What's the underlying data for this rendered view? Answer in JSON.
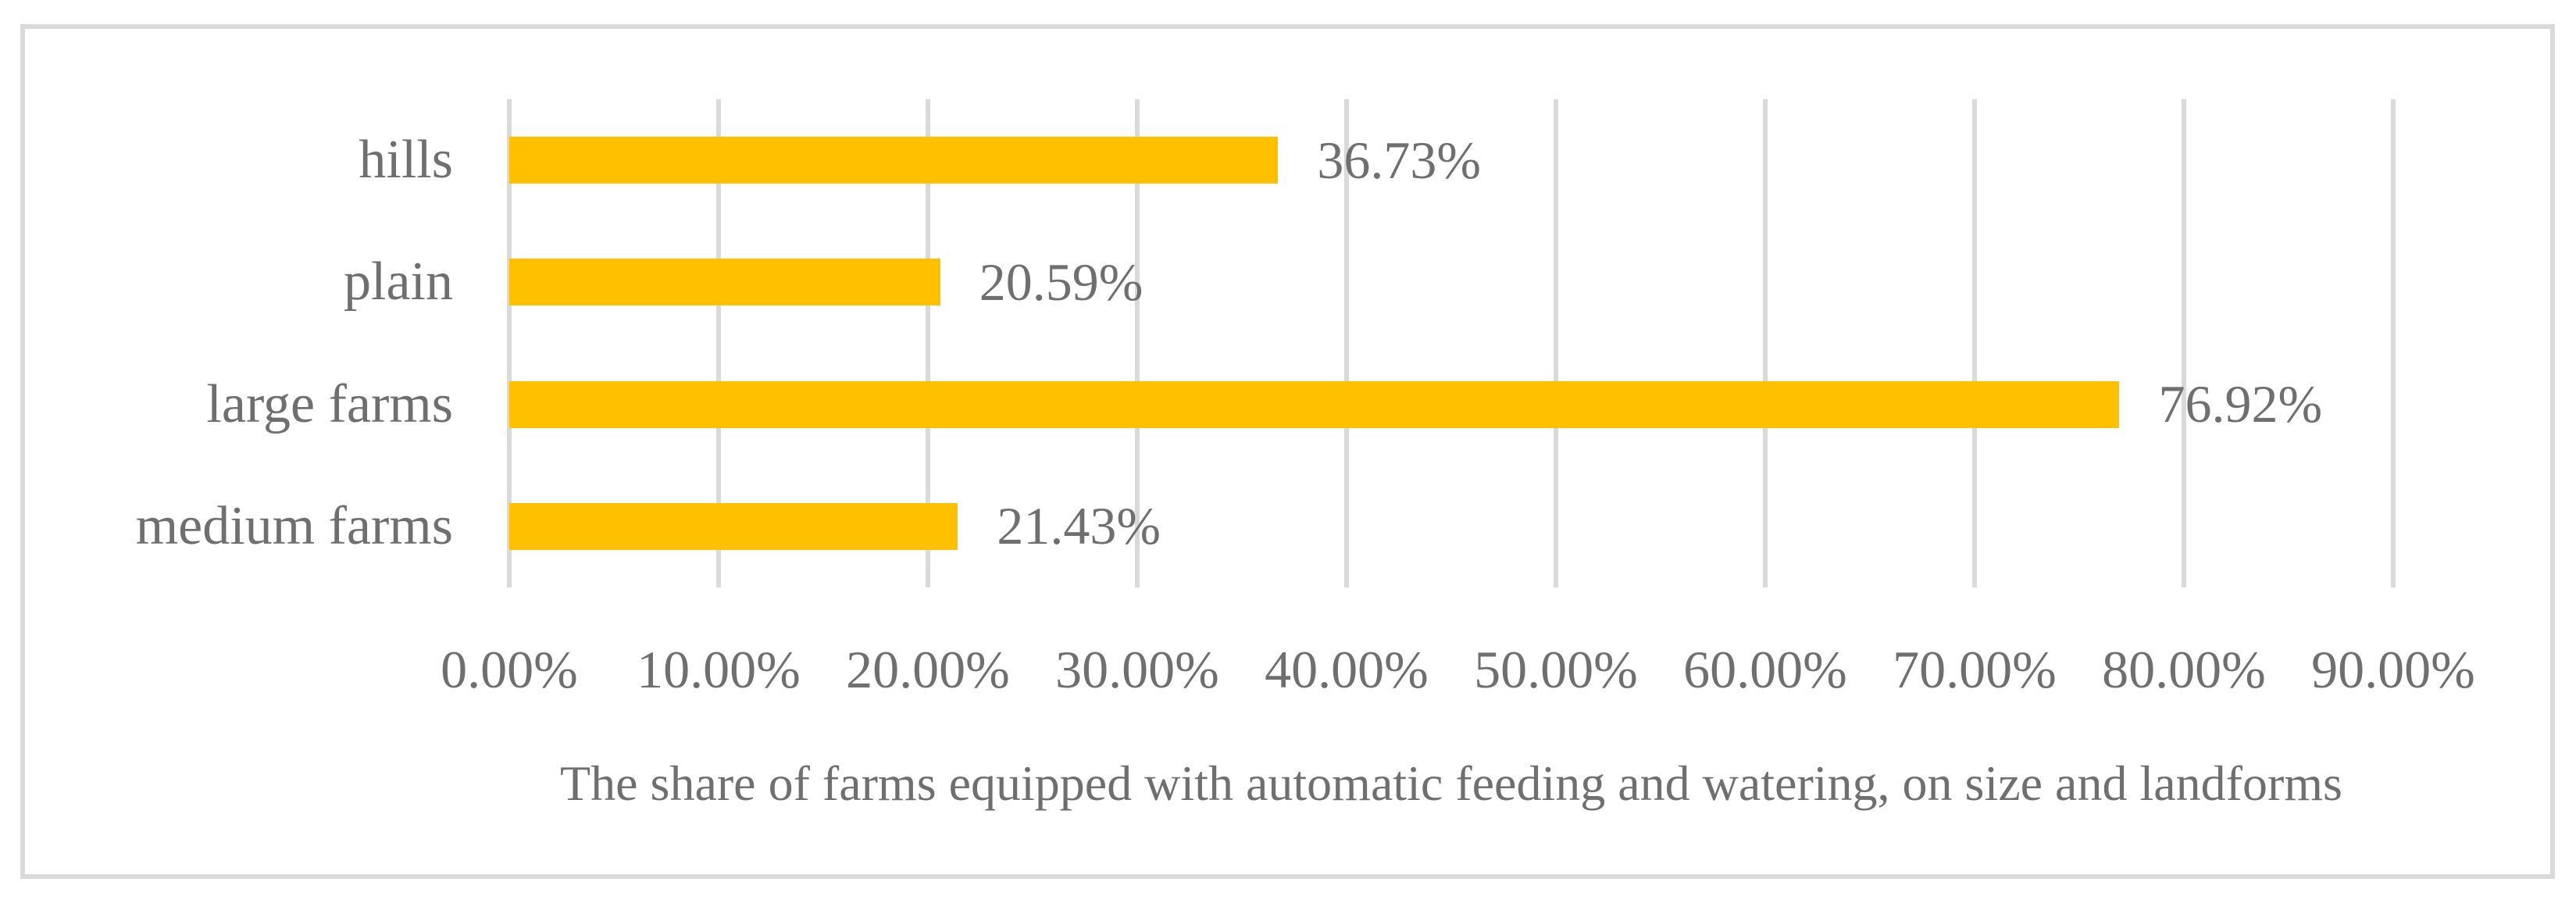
{
  "chart_data": {
    "type": "bar",
    "orientation": "horizontal",
    "title": "The share of farms equipped with automatic feeding and watering, on size and landforms",
    "categories": [
      "hills",
      "plain",
      "large farms",
      "medium farms"
    ],
    "values": [
      36.73,
      20.59,
      76.92,
      21.43
    ],
    "data_labels": [
      "36.73%",
      "20.59%",
      "76.92%",
      "21.43%"
    ],
    "x_ticks": [
      {
        "value": 0,
        "label": "0.00%"
      },
      {
        "value": 10,
        "label": "10.00%"
      },
      {
        "value": 20,
        "label": "20.00%"
      },
      {
        "value": 30,
        "label": "30.00%"
      },
      {
        "value": 40,
        "label": "40.00%"
      },
      {
        "value": 50,
        "label": "50.00%"
      },
      {
        "value": 60,
        "label": "60.00%"
      },
      {
        "value": 70,
        "label": "70.00%"
      },
      {
        "value": 80,
        "label": "80.00%"
      },
      {
        "value": 90,
        "label": "90.00%"
      }
    ],
    "xlim": [
      0,
      90
    ],
    "grid": true,
    "legend": false,
    "colors": {
      "bar": "#FFC000",
      "gridline": "#D9D9D9",
      "axis_line": "#D9D9D9",
      "text": "#6F6F6F",
      "frame_border": "#D9D9D9",
      "background": "#FFFFFF"
    }
  }
}
